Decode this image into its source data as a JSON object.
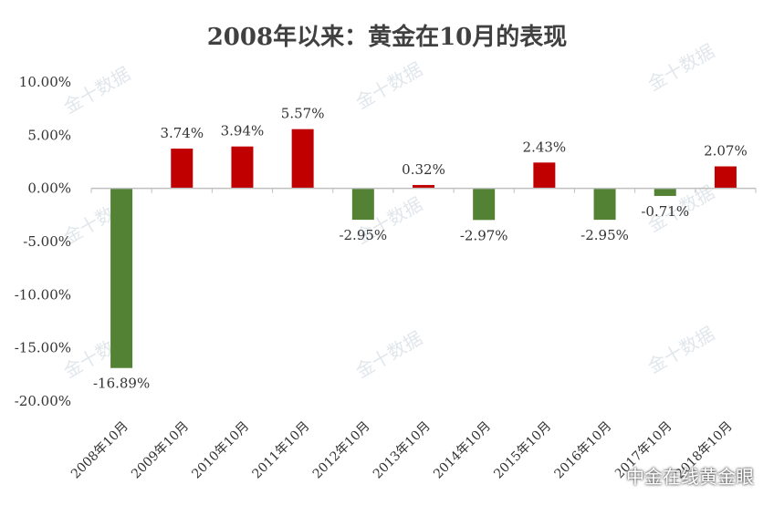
{
  "chart_data": {
    "type": "bar",
    "title": "2008年以来：黄金在10月的表现",
    "categories": [
      "2008年10月",
      "2009年10月",
      "2010年10月",
      "2011年10月",
      "2012年10月",
      "2013年10月",
      "2014年10月",
      "2015年10月",
      "2016年10月",
      "2017年10月",
      "2018年10月"
    ],
    "values": [
      -16.89,
      3.74,
      3.94,
      5.57,
      -2.95,
      0.32,
      -2.97,
      2.43,
      -2.95,
      -0.71,
      2.07
    ],
    "data_labels": [
      "-16.89%",
      "3.74%",
      "3.94%",
      "5.57%",
      "-2.95%",
      "0.32%",
      "-2.97%",
      "2.43%",
      "-2.95%",
      "-0.71%",
      "2.07%"
    ],
    "y_ticks": [
      10,
      5,
      0,
      -5,
      -10,
      -15,
      -20
    ],
    "y_tick_labels": [
      "10.00%",
      "5.00%",
      "0.00%",
      "-5.00%",
      "-10.00%",
      "-15.00%",
      "-20.00%"
    ],
    "ylim": [
      -20,
      10
    ],
    "xlabel": "",
    "ylabel": "",
    "grid": false,
    "legend": "none",
    "colors": {
      "positive": "#c00000",
      "negative": "#548235",
      "axis": "#bfbfbf"
    }
  },
  "watermark": "金十数据",
  "footer": {
    "icon": "wechat-icon",
    "text": "中金在线黄金眼"
  }
}
